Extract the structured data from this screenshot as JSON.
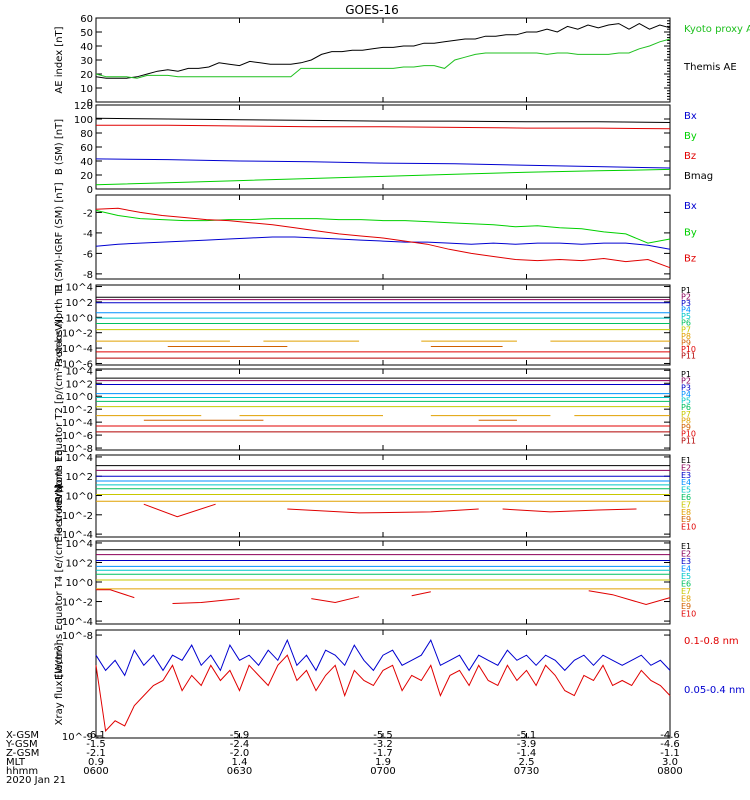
{
  "colors": {
    "black": "#000000",
    "red": "#e00000",
    "green": "#00d000",
    "blue": "#0000d0",
    "kyoto": "#20c020",
    "p": [
      "#000000",
      "#8b0058",
      "#0000c8",
      "#0090ff",
      "#00c8c8",
      "#00c060",
      "#c8c800",
      "#e0a000",
      "#d06000",
      "#e00000",
      "#b00000"
    ],
    "e": [
      "#000000",
      "#8b0058",
      "#0000c8",
      "#0090ff",
      "#00c8c8",
      "#00c060",
      "#c8c800",
      "#e0a000",
      "#d06000",
      "#e00000",
      "#b00000"
    ]
  },
  "chart_data": {
    "type": "line",
    "title": "GOES-16",
    "x_domain": [
      0,
      120
    ],
    "x_tick_positions": [
      0,
      30,
      60,
      90,
      120
    ],
    "panels": [
      {
        "id": "ae",
        "ylabel": "AE index [nT]",
        "yticks": [
          "0",
          "10",
          "20",
          "30",
          "40",
          "50",
          "60"
        ],
        "tick_values": [
          0,
          10,
          20,
          30,
          40,
          50,
          60
        ],
        "log": false,
        "ylim": [
          0,
          60
        ],
        "legend": [
          {
            "text": "Kyoto proxy AE",
            "color_key": "kyoto"
          },
          {
            "text": "Themis AE",
            "color_key": "black"
          }
        ],
        "series": [
          {
            "name": "Themis AE",
            "color_key": "black",
            "values": [
              18,
              17,
              17,
              17,
              18,
              20,
              22,
              23,
              22,
              24,
              24,
              25,
              28,
              27,
              26,
              29,
              28,
              27,
              27,
              27,
              28,
              30,
              34,
              36,
              36,
              37,
              37,
              38,
              39,
              39,
              40,
              40,
              42,
              42,
              43,
              44,
              45,
              45,
              47,
              47,
              48,
              48,
              50,
              50,
              52,
              50,
              54,
              52,
              55,
              53,
              55,
              56,
              52,
              56,
              52,
              55,
              53
            ]
          },
          {
            "name": "Kyoto proxy AE",
            "color_key": "kyoto",
            "values": [
              20,
              18,
              18,
              18,
              17,
              19,
              19,
              19,
              18,
              18,
              18,
              18,
              18,
              18,
              18,
              18,
              18,
              18,
              18,
              18,
              24,
              24,
              24,
              24,
              24,
              24,
              24,
              24,
              24,
              24,
              25,
              25,
              26,
              26,
              24,
              30,
              32,
              34,
              35,
              35,
              35,
              35,
              35,
              35,
              34,
              35,
              35,
              34,
              34,
              34,
              34,
              35,
              35,
              38,
              40,
              43,
              45
            ]
          }
        ]
      },
      {
        "id": "bsm",
        "ylabel": "B (SM) [nT]",
        "yticks": [
          "0",
          "20",
          "40",
          "60",
          "80",
          "100",
          "120"
        ],
        "tick_values": [
          0,
          20,
          40,
          60,
          80,
          100,
          120
        ],
        "log": false,
        "ylim": [
          0,
          120
        ],
        "legend": [
          {
            "text": "Bx",
            "color_key": "blue"
          },
          {
            "text": "By",
            "color_key": "green"
          },
          {
            "text": "Bz",
            "color_key": "red"
          },
          {
            "text": "Bmag",
            "color_key": "black"
          }
        ],
        "series": [
          {
            "name": "Bmag",
            "color_key": "black",
            "values": [
              101,
              100,
              99,
              98,
              97,
              97,
              96,
              96,
              95
            ]
          },
          {
            "name": "Bz",
            "color_key": "red",
            "values": [
              91,
              91,
              90,
              89,
              89,
              88,
              87,
              87,
              86
            ]
          },
          {
            "name": "Bx",
            "color_key": "blue",
            "values": [
              43,
              42,
              40,
              39,
              37,
              36,
              34,
              32,
              30
            ]
          },
          {
            "name": "By",
            "color_key": "green",
            "values": [
              6,
              9,
              12,
              15,
              18,
              21,
              24,
              26,
              28
            ]
          }
        ]
      },
      {
        "id": "bdiff",
        "ylabel": "B (SM)-IGRF (SM) [nT]",
        "yticks": [
          "-8",
          "-6",
          "-4",
          "-2"
        ],
        "tick_values": [
          -8,
          -6,
          -4,
          -2
        ],
        "log": false,
        "ylim": [
          -8.5,
          -0.3
        ],
        "legend": [
          {
            "text": "Bx",
            "color_key": "blue"
          },
          {
            "text": "By",
            "color_key": "green"
          },
          {
            "text": "Bz",
            "color_key": "red"
          }
        ],
        "series": [
          {
            "name": "By",
            "color_key": "green",
            "values": [
              -1.8,
              -2.3,
              -2.6,
              -2.7,
              -2.8,
              -2.8,
              -2.7,
              -2.7,
              -2.6,
              -2.6,
              -2.6,
              -2.7,
              -2.7,
              -2.8,
              -2.8,
              -2.9,
              -3.0,
              -3.1,
              -3.2,
              -3.4,
              -3.3,
              -3.5,
              -3.6,
              -3.9,
              -4.1,
              -5.0,
              -4.6
            ]
          },
          {
            "name": "Bx",
            "color_key": "blue",
            "values": [
              -5.3,
              -5.1,
              -5.0,
              -4.9,
              -4.8,
              -4.7,
              -4.6,
              -4.5,
              -4.4,
              -4.4,
              -4.5,
              -4.6,
              -4.7,
              -4.8,
              -4.9,
              -4.9,
              -5.0,
              -5.1,
              -5.0,
              -5.1,
              -5.0,
              -5.0,
              -5.1,
              -5.0,
              -5.0,
              -5.2,
              -5.6
            ]
          },
          {
            "name": "Bz",
            "color_key": "red",
            "values": [
              -1.7,
              -1.6,
              -2.0,
              -2.3,
              -2.5,
              -2.7,
              -2.8,
              -3.0,
              -3.2,
              -3.5,
              -3.8,
              -4.1,
              -4.3,
              -4.5,
              -4.8,
              -5.1,
              -5.6,
              -6.0,
              -6.3,
              -6.6,
              -6.7,
              -6.6,
              -6.7,
              -6.5,
              -6.8,
              -6.6,
              -7.4
            ]
          }
        ]
      },
      {
        "id": "pnorth",
        "ylabel": "Protons North T1",
        "yticks": [
          "10^-6",
          "10^-4",
          "10^-2",
          "10^0",
          "10^2",
          "10^4"
        ],
        "tick_values": [
          -6,
          -4,
          -2,
          0,
          2,
          4
        ],
        "log": true,
        "ylim": [
          -6.2,
          4.2
        ],
        "legend_prefix": "P",
        "levels": [
          2.6,
          2.3,
          1.9,
          0.6,
          -0.1,
          -0.8,
          -1.6,
          -3.1,
          -3.8,
          -4.5,
          -5.3
        ],
        "sparse": [
          [
            7,
            [
              [
                0,
                28
              ],
              [
                35,
                55
              ],
              [
                68,
                88
              ],
              [
                95,
                120
              ]
            ]
          ],
          [
            8,
            [
              [
                15,
                40
              ],
              [
                70,
                85
              ]
            ]
          ]
        ]
      },
      {
        "id": "pequator",
        "ylabel": "Protons Equator T2 [p/(cm²-s-sr-keV)]",
        "yticks": [
          "10^-8",
          "10^-6",
          "10^-4",
          "10^-2",
          "10^0",
          "10^2",
          "10^4"
        ],
        "tick_values": [
          -8,
          -6,
          -4,
          -2,
          0,
          2,
          4
        ],
        "log": true,
        "ylim": [
          -8.3,
          4.2
        ],
        "legend_prefix": "P",
        "levels": [
          2.8,
          2.4,
          1.8,
          0.4,
          -0.2,
          -0.8,
          -1.6,
          -3.0,
          -3.7,
          -4.6,
          -5.5
        ],
        "sparse": [
          [
            7,
            [
              [
                0,
                22
              ],
              [
                30,
                60
              ],
              [
                70,
                95
              ],
              [
                100,
                120
              ]
            ]
          ],
          [
            8,
            [
              [
                10,
                35
              ],
              [
                80,
                88
              ]
            ]
          ]
        ]
      },
      {
        "id": "enorth",
        "ylabel": "Electrons North T3",
        "yticks": [
          "10^-4",
          "10^-2",
          "10^0",
          "10^2",
          "10^4"
        ],
        "tick_values": [
          -4,
          -2,
          0,
          2,
          4
        ],
        "log": true,
        "ylim": [
          -4.3,
          4.2
        ],
        "legend_prefix": "E",
        "levels": [
          3.1,
          2.6,
          2.0,
          1.5,
          1.1,
          0.7,
          0.1,
          -0.6,
          -1.5,
          -2.3,
          -3.2
        ],
        "sparse_red": [
          [
            [
              10,
              -0.9
            ],
            [
              17,
              -2.2
            ],
            [
              25,
              -0.9
            ]
          ],
          [
            [
              40,
              -1.4
            ],
            [
              55,
              -1.8
            ],
            [
              70,
              -1.7
            ],
            [
              80,
              -1.4
            ]
          ],
          [
            [
              85,
              -1.4
            ],
            [
              95,
              -1.7
            ],
            [
              105,
              -1.5
            ],
            [
              113,
              -1.4
            ]
          ]
        ]
      },
      {
        "id": "eequator",
        "ylabel": "Electrons Equator T4 [e/(cm²-s-sr-keV)]",
        "yticks": [
          "10^-4",
          "10^-2",
          "10^0",
          "10^2",
          "10^4"
        ],
        "tick_values": [
          -4,
          -2,
          0,
          2,
          4
        ],
        "log": true,
        "ylim": [
          -4.3,
          4.2
        ],
        "legend_prefix": "E",
        "levels": [
          3.3,
          2.8,
          2.2,
          1.6,
          1.2,
          0.8,
          0.2,
          -0.7,
          -1.6,
          -2.4,
          -3.2
        ],
        "sparse_red": [
          [
            [
              0,
              -0.8
            ],
            [
              3,
              -0.8
            ],
            [
              8,
              -1.6
            ]
          ],
          [
            [
              16,
              -2.2
            ],
            [
              22,
              -2.1
            ],
            [
              30,
              -1.7
            ]
          ],
          [
            [
              45,
              -1.7
            ],
            [
              50,
              -2.1
            ],
            [
              55,
              -1.5
            ]
          ],
          [
            [
              66,
              -1.4
            ],
            [
              70,
              -1.0
            ]
          ],
          [
            [
              103,
              -0.9
            ],
            [
              108,
              -1.3
            ],
            [
              115,
              -2.3
            ],
            [
              120,
              -1.6
            ]
          ]
        ]
      },
      {
        "id": "xray",
        "ylabel": "Xray flux [W/m²]",
        "yticks": [
          "10^-9",
          "10^-8"
        ],
        "tick_values": [
          -9,
          -8
        ],
        "log": true,
        "ylim": [
          -9.02,
          -7.95
        ],
        "legend": [
          {
            "text": "0.1-0.8 nm",
            "color_key": "red"
          },
          {
            "text": "0.05-0.4 nm",
            "color_key": "blue"
          }
        ],
        "series": [
          {
            "name": "0.05-0.4 nm",
            "color_key": "blue",
            "values": [
              -8.2,
              -8.35,
              -8.25,
              -8.4,
              -8.15,
              -8.3,
              -8.2,
              -8.35,
              -8.2,
              -8.25,
              -8.1,
              -8.3,
              -8.2,
              -8.35,
              -8.1,
              -8.25,
              -8.2,
              -8.3,
              -8.15,
              -8.25,
              -8.05,
              -8.3,
              -8.2,
              -8.35,
              -8.15,
              -8.2,
              -8.3,
              -8.1,
              -8.25,
              -8.35,
              -8.2,
              -8.15,
              -8.3,
              -8.25,
              -8.2,
              -8.05,
              -8.3,
              -8.25,
              -8.2,
              -8.35,
              -8.2,
              -8.25,
              -8.3,
              -8.15,
              -8.25,
              -8.2,
              -8.3,
              -8.2,
              -8.25,
              -8.35,
              -8.25,
              -8.2,
              -8.3,
              -8.2,
              -8.25,
              -8.3,
              -8.25,
              -8.2,
              -8.3,
              -8.25,
              -8.35
            ]
          },
          {
            "name": "0.1-0.8 nm",
            "color_key": "red",
            "values": [
              -8.3,
              -8.95,
              -8.85,
              -8.9,
              -8.7,
              -8.6,
              -8.5,
              -8.45,
              -8.3,
              -8.55,
              -8.4,
              -8.5,
              -8.3,
              -8.45,
              -8.35,
              -8.55,
              -8.3,
              -8.4,
              -8.5,
              -8.3,
              -8.2,
              -8.45,
              -8.35,
              -8.55,
              -8.4,
              -8.3,
              -8.6,
              -8.35,
              -8.45,
              -8.5,
              -8.35,
              -8.3,
              -8.55,
              -8.4,
              -8.45,
              -8.3,
              -8.6,
              -8.4,
              -8.35,
              -8.5,
              -8.3,
              -8.45,
              -8.5,
              -8.3,
              -8.45,
              -8.35,
              -8.5,
              -8.3,
              -8.4,
              -8.55,
              -8.6,
              -8.4,
              -8.45,
              -8.3,
              -8.5,
              -8.45,
              -8.5,
              -8.35,
              -8.45,
              -8.5,
              -8.6
            ]
          }
        ]
      }
    ]
  },
  "axis_table": {
    "rows": [
      {
        "label": "X-GSM",
        "values": [
          "-6.1",
          "-5.9",
          "-5.5",
          "-5.1",
          "-4.6"
        ]
      },
      {
        "label": "Y-GSM",
        "values": [
          "-1.5",
          "-2.4",
          "-3.2",
          "-3.9",
          "-4.6"
        ]
      },
      {
        "label": "Z-GSM",
        "values": [
          "-2.1",
          "-2.0",
          "-1.7",
          "-1.4",
          "-1.1"
        ]
      },
      {
        "label": "MLT",
        "values": [
          "0.9",
          "1.4",
          "1.9",
          "2.5",
          "3.0"
        ]
      },
      {
        "label": "hhmm",
        "values": [
          "0600",
          "0630",
          "0700",
          "0730",
          "0800"
        ]
      }
    ],
    "date": "2020 Jan 21"
  }
}
